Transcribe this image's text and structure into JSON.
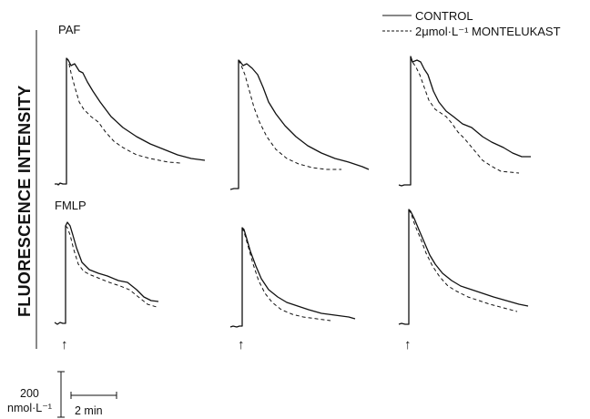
{
  "chart_data": {
    "type": "line",
    "ylabel": "FLUORESCENCE INTENSITY",
    "legend": {
      "position": "top-right",
      "entries": [
        {
          "label": "CONTROL",
          "style": "solid"
        },
        {
          "label": "2μmol·L⁻¹ MONTELUKAST",
          "style": "dashed"
        }
      ]
    },
    "row_labels": [
      "PAF",
      "FMLP"
    ],
    "stimulus_marker": "↑",
    "scale_bars": {
      "y": {
        "value": "200",
        "unit": "nmol·L⁻¹"
      },
      "x": {
        "label": "2 min"
      }
    },
    "panels": [
      {
        "row": "PAF",
        "col": 1,
        "control": [
          [
            0,
            202
          ],
          [
            3,
            202
          ],
          [
            4,
            203
          ],
          [
            6,
            201
          ],
          [
            9,
            202
          ],
          [
            12,
            202
          ],
          [
            13,
            202
          ],
          [
            13,
            100
          ],
          [
            13,
            64
          ],
          [
            15,
            66
          ],
          [
            18,
            72
          ],
          [
            22,
            70
          ],
          [
            27,
            78
          ],
          [
            31,
            80
          ],
          [
            36,
            90
          ],
          [
            42,
            100
          ],
          [
            50,
            112
          ],
          [
            62,
            128
          ],
          [
            75,
            140
          ],
          [
            90,
            150
          ],
          [
            105,
            158
          ],
          [
            120,
            164
          ],
          [
            135,
            170
          ],
          [
            150,
            174
          ],
          [
            165,
            176
          ]
        ],
        "montelukast": [
          [
            13,
            64
          ],
          [
            15,
            66
          ],
          [
            18,
            80
          ],
          [
            22,
            95
          ],
          [
            27,
            112
          ],
          [
            32,
            120
          ],
          [
            40,
            128
          ],
          [
            48,
            134
          ],
          [
            56,
            145
          ],
          [
            65,
            155
          ],
          [
            75,
            162
          ],
          [
            90,
            170
          ],
          [
            105,
            174
          ],
          [
            125,
            178
          ],
          [
            138,
            179
          ]
        ]
      },
      {
        "row": "PAF",
        "col": 2,
        "control": [
          [
            0,
            208
          ],
          [
            4,
            207
          ],
          [
            7,
            207
          ],
          [
            9,
            207
          ],
          [
            9,
            110
          ],
          [
            9,
            66
          ],
          [
            11,
            68
          ],
          [
            14,
            72
          ],
          [
            18,
            70
          ],
          [
            24,
            75
          ],
          [
            30,
            82
          ],
          [
            36,
            96
          ],
          [
            42,
            112
          ],
          [
            50,
            125
          ],
          [
            60,
            138
          ],
          [
            72,
            150
          ],
          [
            85,
            160
          ],
          [
            100,
            168
          ],
          [
            115,
            174
          ],
          [
            130,
            178
          ],
          [
            145,
            183
          ],
          [
            152,
            186
          ]
        ],
        "montelukast": [
          [
            9,
            66
          ],
          [
            12,
            72
          ],
          [
            16,
            82
          ],
          [
            21,
            100
          ],
          [
            26,
            118
          ],
          [
            32,
            134
          ],
          [
            40,
            150
          ],
          [
            50,
            164
          ],
          [
            62,
            174
          ],
          [
            75,
            180
          ],
          [
            90,
            184
          ],
          [
            105,
            186
          ],
          [
            122,
            186
          ]
        ]
      },
      {
        "row": "PAF",
        "col": 3,
        "control": [
          [
            0,
            203
          ],
          [
            3,
            204
          ],
          [
            6,
            203
          ],
          [
            9,
            203
          ],
          [
            13,
            203
          ],
          [
            13,
            100
          ],
          [
            13,
            62
          ],
          [
            15,
            68
          ],
          [
            20,
            66
          ],
          [
            24,
            68
          ],
          [
            28,
            76
          ],
          [
            32,
            82
          ],
          [
            38,
            100
          ],
          [
            44,
            112
          ],
          [
            52,
            122
          ],
          [
            60,
            128
          ],
          [
            70,
            136
          ],
          [
            80,
            140
          ],
          [
            92,
            150
          ],
          [
            102,
            156
          ],
          [
            115,
            162
          ],
          [
            125,
            168
          ],
          [
            135,
            172
          ],
          [
            145,
            172
          ]
        ],
        "montelukast": [
          [
            13,
            62
          ],
          [
            15,
            68
          ],
          [
            19,
            74
          ],
          [
            23,
            82
          ],
          [
            28,
            96
          ],
          [
            33,
            110
          ],
          [
            40,
            120
          ],
          [
            46,
            124
          ],
          [
            52,
            128
          ],
          [
            58,
            135
          ],
          [
            65,
            145
          ],
          [
            72,
            152
          ],
          [
            82,
            164
          ],
          [
            92,
            176
          ],
          [
            101,
            182
          ],
          [
            112,
            188
          ],
          [
            132,
            190
          ]
        ]
      },
      {
        "row": "FMLP",
        "col": 1,
        "control": [
          [
            0,
            354
          ],
          [
            3,
            356
          ],
          [
            6,
            354
          ],
          [
            9,
            355
          ],
          [
            12,
            355
          ],
          [
            12,
            300
          ],
          [
            12,
            248
          ],
          [
            14,
            244
          ],
          [
            17,
            248
          ],
          [
            20,
            258
          ],
          [
            24,
            272
          ],
          [
            30,
            288
          ],
          [
            38,
            296
          ],
          [
            48,
            300
          ],
          [
            58,
            303
          ],
          [
            70,
            308
          ],
          [
            80,
            310
          ],
          [
            90,
            318
          ],
          [
            98,
            326
          ],
          [
            106,
            330
          ],
          [
            114,
            331
          ]
        ],
        "montelukast": [
          [
            12,
            248
          ],
          [
            14,
            250
          ],
          [
            17,
            258
          ],
          [
            21,
            274
          ],
          [
            26,
            290
          ],
          [
            32,
            298
          ],
          [
            40,
            302
          ],
          [
            50,
            306
          ],
          [
            60,
            310
          ],
          [
            72,
            314
          ],
          [
            82,
            318
          ],
          [
            92,
            326
          ],
          [
            102,
            334
          ],
          [
            112,
            337
          ],
          [
            114,
            338
          ]
        ]
      },
      {
        "row": "FMLP",
        "col": 2,
        "control": [
          [
            0,
            359
          ],
          [
            3,
            358
          ],
          [
            7,
            359
          ],
          [
            10,
            358
          ],
          [
            13,
            358
          ],
          [
            13,
            300
          ],
          [
            13,
            250
          ],
          [
            15,
            252
          ],
          [
            18,
            262
          ],
          [
            22,
            276
          ],
          [
            28,
            292
          ],
          [
            34,
            306
          ],
          [
            42,
            318
          ],
          [
            52,
            326
          ],
          [
            62,
            332
          ],
          [
            74,
            336
          ],
          [
            86,
            340
          ],
          [
            100,
            344
          ],
          [
            115,
            346
          ],
          [
            130,
            348
          ],
          [
            137,
            350
          ]
        ],
        "montelukast": [
          [
            13,
            250
          ],
          [
            16,
            258
          ],
          [
            20,
            272
          ],
          [
            25,
            290
          ],
          [
            31,
            308
          ],
          [
            38,
            322
          ],
          [
            46,
            332
          ],
          [
            56,
            340
          ],
          [
            68,
            345
          ],
          [
            80,
            348
          ],
          [
            95,
            350
          ],
          [
            110,
            352
          ]
        ]
      },
      {
        "row": "FMLP",
        "col": 3,
        "control": [
          [
            0,
            356
          ],
          [
            3,
            355
          ],
          [
            7,
            356
          ],
          [
            11,
            356
          ],
          [
            11,
            300
          ],
          [
            11,
            230
          ],
          [
            13,
            232
          ],
          [
            17,
            240
          ],
          [
            22,
            252
          ],
          [
            28,
            266
          ],
          [
            34,
            280
          ],
          [
            40,
            290
          ],
          [
            48,
            300
          ],
          [
            58,
            308
          ],
          [
            68,
            314
          ],
          [
            80,
            318
          ],
          [
            92,
            322
          ],
          [
            104,
            326
          ],
          [
            118,
            330
          ],
          [
            132,
            334
          ],
          [
            142,
            336
          ]
        ],
        "montelukast": [
          [
            11,
            230
          ],
          [
            14,
            236
          ],
          [
            18,
            248
          ],
          [
            24,
            262
          ],
          [
            30,
            278
          ],
          [
            37,
            292
          ],
          [
            45,
            304
          ],
          [
            54,
            314
          ],
          [
            64,
            320
          ],
          [
            76,
            326
          ],
          [
            88,
            330
          ],
          [
            100,
            334
          ],
          [
            115,
            338
          ],
          [
            130,
            342
          ]
        ]
      }
    ]
  }
}
